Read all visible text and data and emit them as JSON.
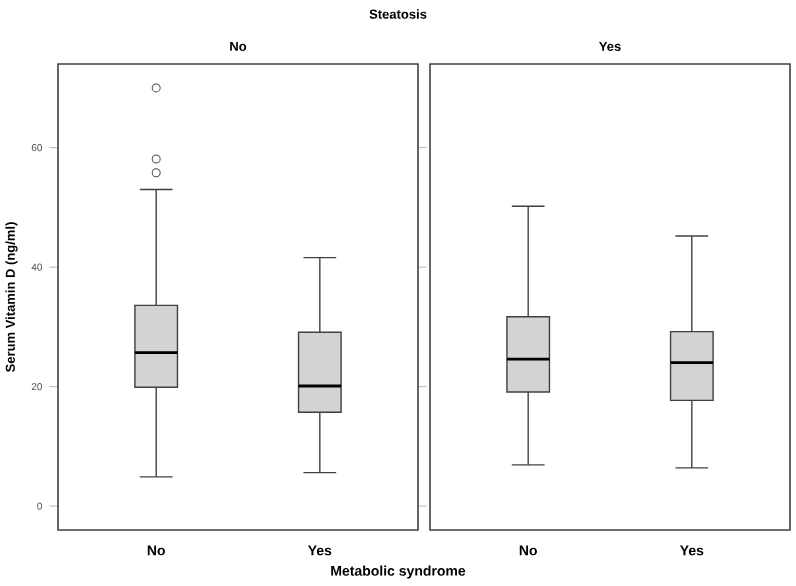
{
  "chart_data": [
    {
      "type": "box",
      "title": "Steatosis",
      "subtitle": "No",
      "xlabel": "Metabolic syndrome",
      "ylabel": "Serum Vitamin D (ng/ml)",
      "categories": [
        "No",
        "Yes"
      ],
      "color": "#d3d3d3",
      "ylim": [
        -4,
        74
      ],
      "yticks": [
        0,
        20,
        40,
        60
      ],
      "boxes": [
        {
          "low": 4.9,
          "q1": 19.9,
          "median": 25.7,
          "q3": 33.6,
          "high": 53,
          "outliers": [
            70,
            58.1,
            55.8
          ]
        },
        {
          "low": 5.6,
          "q1": 15.7,
          "median": 20.1,
          "q3": 29.1,
          "high": 41.6
        }
      ]
    },
    {
      "type": "box",
      "subtitle": "Yes",
      "categories": [
        "No",
        "Yes"
      ],
      "color": "#d3d3d3",
      "ylim": [
        -4,
        74
      ],
      "yticks": [
        0,
        20,
        40,
        60
      ],
      "tick_labels": "x",
      "boxes": [
        {
          "low": 6.9,
          "q1": 19.1,
          "median": 24.6,
          "q3": 31.7,
          "high": 50.2
        },
        {
          "low": 6.4,
          "q1": 17.7,
          "median": 24,
          "q3": 29.2,
          "high": 45.2
        }
      ]
    }
  ]
}
